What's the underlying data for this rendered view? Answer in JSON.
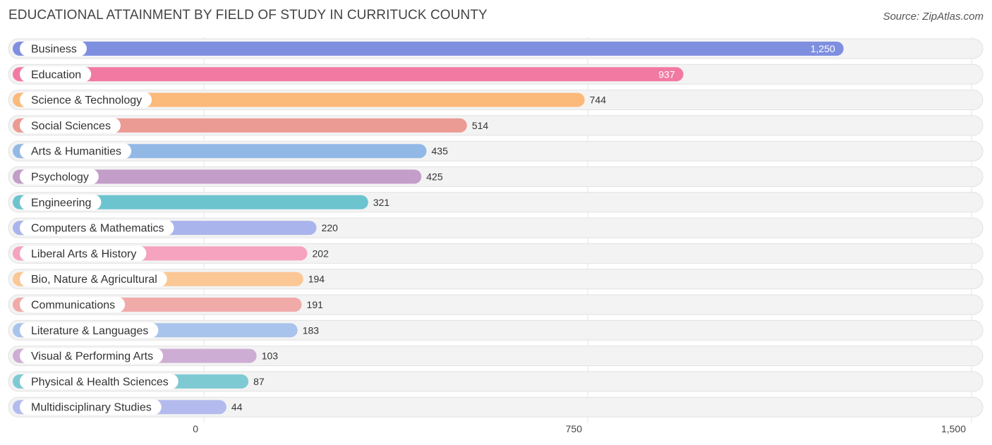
{
  "header": {
    "title": "EDUCATIONAL ATTAINMENT BY FIELD OF STUDY IN CURRITUCK COUNTY",
    "source": "Source: ZipAtlas.com"
  },
  "chart_data": {
    "type": "bar",
    "orientation": "horizontal",
    "title": "EDUCATIONAL ATTAINMENT BY FIELD OF STUDY IN CURRITUCK COUNTY",
    "xlabel": "",
    "ylabel": "",
    "xlim": [
      0,
      1500
    ],
    "grid": true,
    "categories": [
      "Business",
      "Education",
      "Science & Technology",
      "Social Sciences",
      "Arts & Humanities",
      "Psychology",
      "Engineering",
      "Computers & Mathematics",
      "Liberal Arts & History",
      "Bio, Nature & Agricultural",
      "Communications",
      "Literature & Languages",
      "Visual & Performing Arts",
      "Physical & Health Sciences",
      "Multidisciplinary Studies"
    ],
    "values": [
      1250,
      937,
      744,
      514,
      435,
      425,
      321,
      220,
      202,
      194,
      191,
      183,
      103,
      87,
      44
    ],
    "value_labels": [
      "1,250",
      "937",
      "744",
      "514",
      "435",
      "425",
      "321",
      "220",
      "202",
      "194",
      "191",
      "183",
      "103",
      "87",
      "44"
    ],
    "colors": [
      "#7f8fe0",
      "#f27aa2",
      "#fbb97a",
      "#eb9a94",
      "#92b8e6",
      "#c39ec9",
      "#6cc4cf",
      "#aab4ec",
      "#f5a3bf",
      "#fbc795",
      "#f0aaa8",
      "#a8c4ec",
      "#ceadd4",
      "#7ecad3",
      "#b3bbee"
    ],
    "x_ticks": [
      0,
      750,
      1500
    ],
    "x_tick_labels": [
      "0",
      "750",
      "1,500"
    ]
  }
}
